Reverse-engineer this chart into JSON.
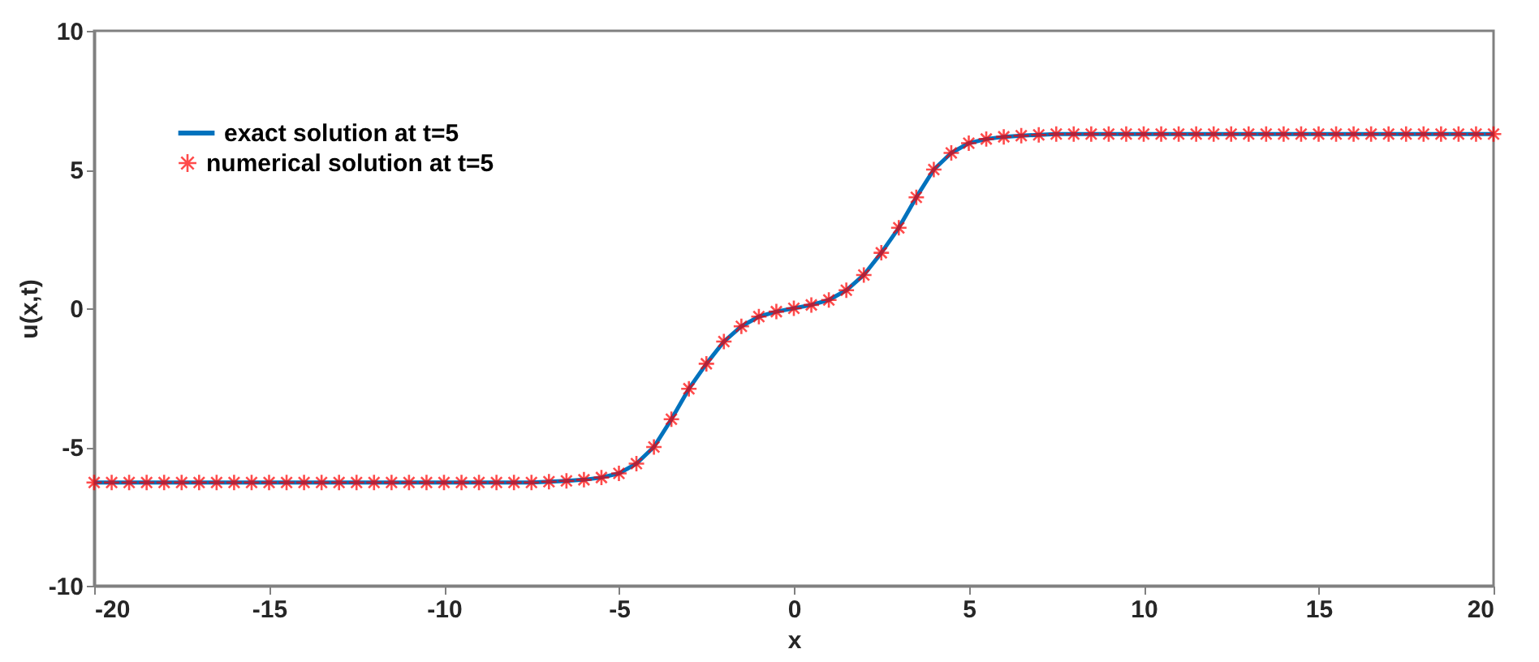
{
  "chart_data": {
    "type": "line",
    "xlabel": "x",
    "ylabel": "u(x,t)",
    "xlim": [
      -20,
      20
    ],
    "ylim": [
      -10,
      10
    ],
    "xticks": [
      -20,
      -15,
      -10,
      -5,
      0,
      5,
      10,
      15,
      20
    ],
    "yticks": [
      -10,
      -5,
      0,
      5,
      10
    ],
    "legend": "top left",
    "x": [
      -20,
      -19.5,
      -19,
      -18.5,
      -18,
      -17.5,
      -17,
      -16.5,
      -16,
      -15.5,
      -15,
      -14.5,
      -14,
      -13.5,
      -13,
      -12.5,
      -12,
      -11.5,
      -11,
      -10.5,
      -10,
      -9.5,
      -9,
      -8.5,
      -8,
      -7.5,
      -7,
      -6.5,
      -6,
      -5.5,
      -5,
      -4.5,
      -4,
      -3.5,
      -3,
      -2.5,
      -2,
      -1.5,
      -1,
      -0.5,
      0,
      0.5,
      1,
      1.5,
      2,
      2.5,
      3,
      3.5,
      4,
      4.5,
      5,
      5.5,
      6,
      6.5,
      7,
      7.5,
      8,
      8.5,
      9,
      9.5,
      10,
      10.5,
      11,
      11.5,
      12,
      12.5,
      13,
      13.5,
      14,
      14.5,
      15,
      15.5,
      16,
      16.5,
      17,
      17.5,
      18,
      18.5,
      19,
      19.5,
      20
    ],
    "series": [
      {
        "name": "exact solution at t=5",
        "color": "#0072bd",
        "line_style": "solid",
        "marker": "none",
        "values": [
          -6.28,
          -6.28,
          -6.28,
          -6.28,
          -6.28,
          -6.28,
          -6.28,
          -6.28,
          -6.28,
          -6.28,
          -6.28,
          -6.28,
          -6.28,
          -6.28,
          -6.28,
          -6.28,
          -6.28,
          -6.28,
          -6.28,
          -6.28,
          -6.28,
          -6.28,
          -6.28,
          -6.28,
          -6.28,
          -6.28,
          -6.25,
          -6.22,
          -6.18,
          -6.1,
          -5.95,
          -5.6,
          -5.0,
          -4.0,
          -2.9,
          -2.0,
          -1.2,
          -0.65,
          -0.3,
          -0.12,
          0,
          0.12,
          0.3,
          0.65,
          1.2,
          2.0,
          2.9,
          4.0,
          5.0,
          5.6,
          5.95,
          6.1,
          6.18,
          6.22,
          6.25,
          6.28,
          6.28,
          6.28,
          6.28,
          6.28,
          6.28,
          6.28,
          6.28,
          6.28,
          6.28,
          6.28,
          6.28,
          6.28,
          6.28,
          6.28,
          6.28,
          6.28,
          6.28,
          6.28,
          6.28,
          6.28,
          6.28,
          6.28,
          6.28,
          6.28,
          6.28
        ]
      },
      {
        "name": "numerical solution at t=5",
        "type": "scatter",
        "color": "#ff0000",
        "marker": "cross",
        "values": [
          -6.28,
          -6.28,
          -6.28,
          -6.28,
          -6.28,
          -6.28,
          -6.28,
          -6.28,
          -6.28,
          -6.28,
          -6.28,
          -6.28,
          -6.28,
          -6.28,
          -6.28,
          -6.28,
          -6.28,
          -6.28,
          -6.28,
          -6.28,
          -6.28,
          -6.28,
          -6.28,
          -6.28,
          -6.28,
          -6.28,
          -6.25,
          -6.22,
          -6.18,
          -6.1,
          -5.95,
          -5.6,
          -5.0,
          -4.0,
          -2.9,
          -2.0,
          -1.2,
          -0.65,
          -0.3,
          -0.12,
          0,
          0.12,
          0.3,
          0.65,
          1.2,
          2.0,
          2.9,
          4.0,
          5.0,
          5.6,
          5.95,
          6.1,
          6.18,
          6.22,
          6.25,
          6.28,
          6.28,
          6.28,
          6.28,
          6.28,
          6.28,
          6.28,
          6.28,
          6.28,
          6.28,
          6.28,
          6.28,
          6.28,
          6.28,
          6.28,
          6.28,
          6.28,
          6.28,
          6.28,
          6.28,
          6.28,
          6.28,
          6.28,
          6.28,
          6.28,
          6.28
        ]
      }
    ]
  }
}
